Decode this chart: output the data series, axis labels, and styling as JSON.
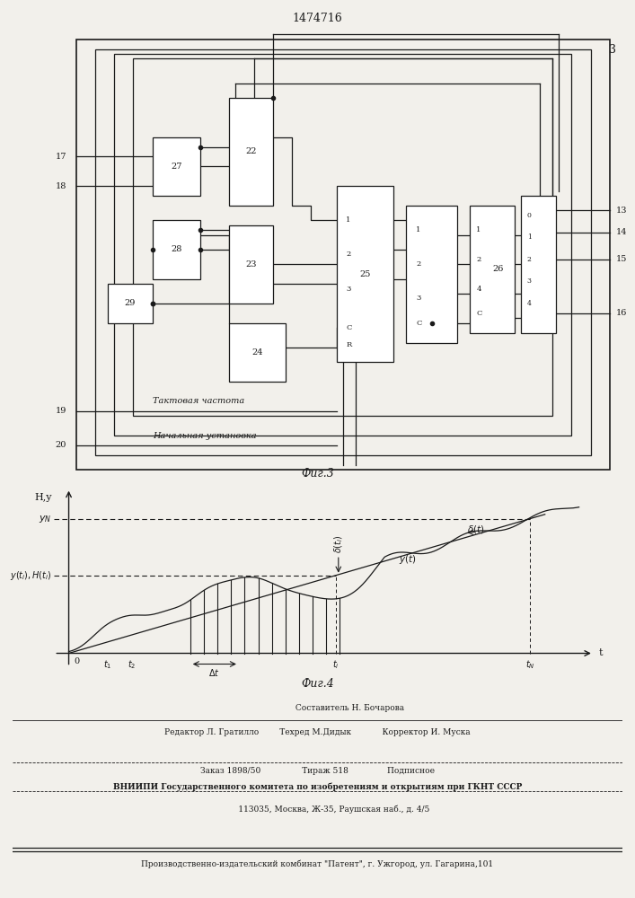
{
  "patent_number": "1474716",
  "fig3_label": "Фиг.3",
  "fig4_label": "Фиг.4",
  "bg": "#f2f0eb",
  "blk": "#1a1a1a",
  "taktovaya": "Тактовая частота",
  "nachalnaya": "Начальная установка",
  "footer_line1": "                         Составитель Н. Бочарова",
  "footer_line2": "Редактор Л. Гратилло        Техред М.Дидык            Корректор И. Муска",
  "footer_line3": "Заказ 1898/50                Тираж 518               Подписное",
  "footer_line4": "ВНИИПИ Государственного комитета по изобретениям и открытиям при ГКНТ СССР",
  "footer_line5": "             113035, Москва, Ж-35, Раушская наб., д. 4/5",
  "footer_line6": "Производственно-издательский комбинат \"Патент\", г. Ужгород, ул. Гагарина,101"
}
